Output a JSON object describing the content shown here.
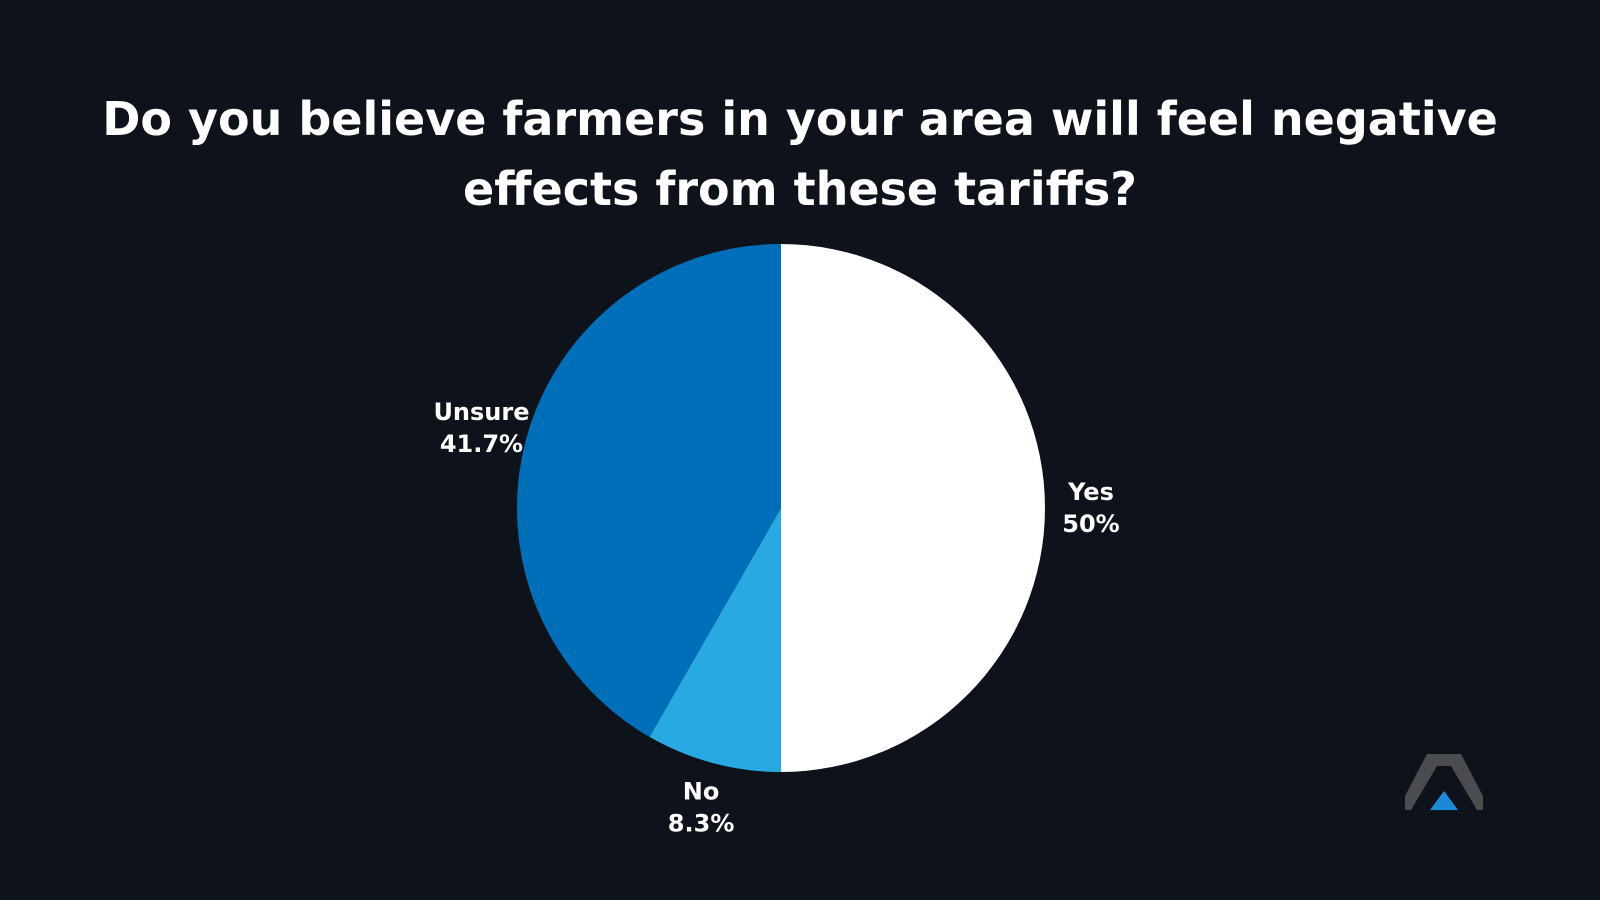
{
  "chart_data": {
    "type": "pie",
    "title": "Do you believe farmers in your area will feel negative effects from these tariffs?",
    "slices": [
      {
        "label": "Yes",
        "value": 50,
        "value_label": "50%",
        "color": "#ffffff"
      },
      {
        "label": "No",
        "value": 8.3,
        "value_label": "8.3%",
        "color": "#29a9e1"
      },
      {
        "label": "Unsure",
        "value": 41.7,
        "value_label": "41.7%",
        "color": "#006fb9"
      }
    ],
    "start_angle": "12 o'clock",
    "direction": "clockwise"
  },
  "colors": {
    "background": "#0e121a",
    "logo_gray": "#4a4c50",
    "logo_blue": "#1a8ad6"
  },
  "logo": {
    "icon": "peak-logo-icon"
  }
}
